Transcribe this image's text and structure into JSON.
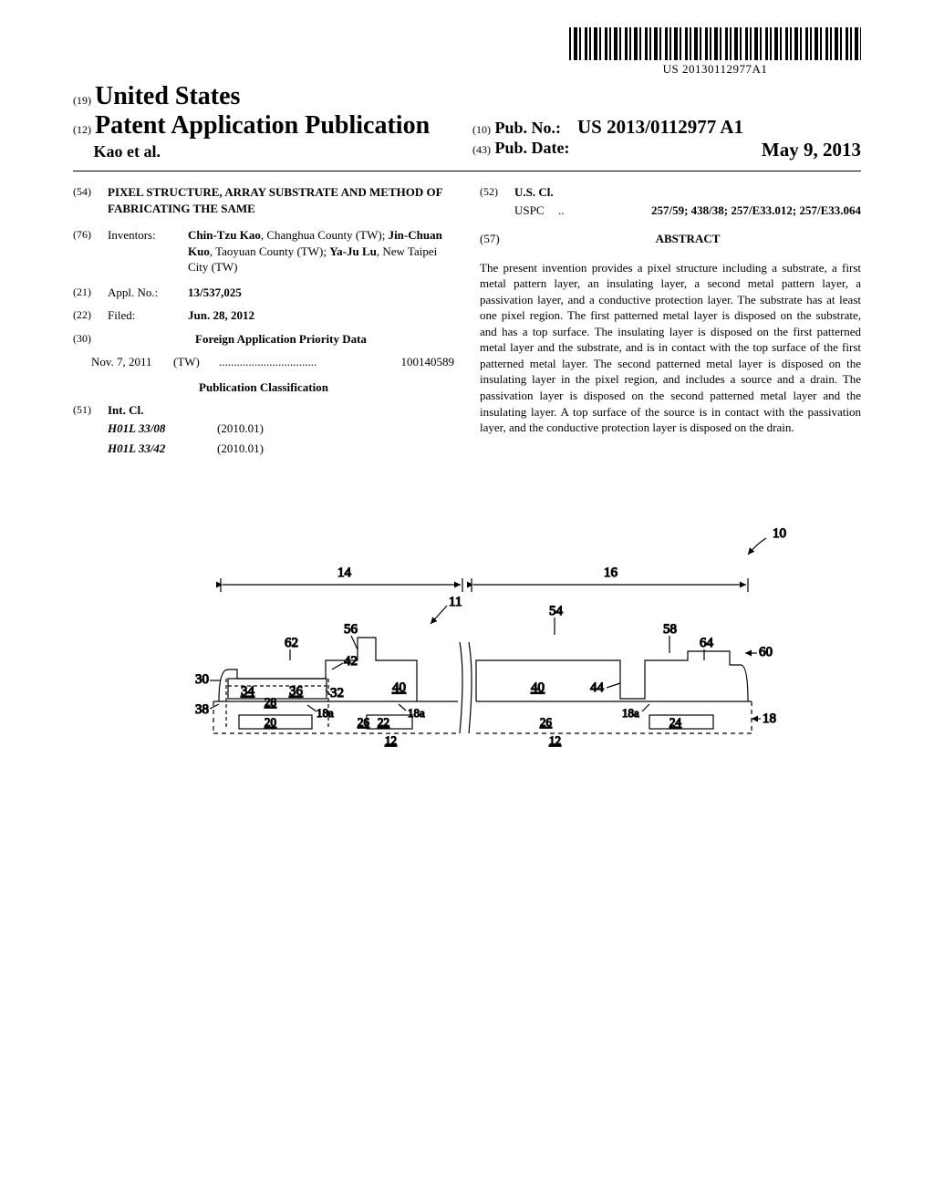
{
  "barcode_text": "US 20130112977A1",
  "header": {
    "country_code": "(19)",
    "country": "United States",
    "pub_type_code": "(12)",
    "pub_type": "Patent Application Publication",
    "authors_line": "Kao et al.",
    "pubno_code": "(10)",
    "pubno_label": "Pub. No.:",
    "pubno_value": "US 2013/0112977 A1",
    "pubdate_code": "(43)",
    "pubdate_label": "Pub. Date:",
    "pubdate_value": "May 9, 2013"
  },
  "left": {
    "title_code": "(54)",
    "title": "PIXEL STRUCTURE, ARRAY SUBSTRATE AND METHOD OF FABRICATING THE SAME",
    "inventors_code": "(76)",
    "inventors_label": "Inventors:",
    "inventors_value_parts": [
      {
        "name": "Chin-Tzu Kao",
        "loc": ", Changhua County (TW); "
      },
      {
        "name": "Jin-Chuan Kuo",
        "loc": ", Taoyuan County (TW); "
      },
      {
        "name": "Ya-Ju Lu",
        "loc": ", New Taipei City (TW)"
      }
    ],
    "applno_code": "(21)",
    "applno_label": "Appl. No.:",
    "applno_value": "13/537,025",
    "filed_code": "(22)",
    "filed_label": "Filed:",
    "filed_value": "Jun. 28, 2012",
    "foreign_code": "(30)",
    "foreign_header": "Foreign Application Priority Data",
    "foreign_date": "Nov. 7, 2011",
    "foreign_ctry": "(TW)",
    "foreign_dots": ".................................",
    "foreign_app": "100140589",
    "pubclass_header": "Publication Classification",
    "intcl_code": "(51)",
    "intcl_label": "Int. Cl.",
    "intcl_rows": [
      {
        "cls": "H01L 33/08",
        "ver": "(2010.01)"
      },
      {
        "cls": "H01L 33/42",
        "ver": "(2010.01)"
      }
    ]
  },
  "right": {
    "uscl_code": "(52)",
    "uscl_label": "U.S. Cl.",
    "uscl_prefix": "USPC",
    "uscl_dots": "..",
    "uscl_value": "257/59; 438/38; 257/E33.012; 257/E33.064",
    "abstract_code": "(57)",
    "abstract_header": "ABSTRACT",
    "abstract_text": "The present invention provides a pixel structure including a substrate, a first metal pattern layer, an insulating layer, a second metal pattern layer, a passivation layer, and a conductive protection layer. The substrate has at least one pixel region. The first patterned metal layer is disposed on the substrate, and has a top surface. The insulating layer is disposed on the first patterned metal layer and the substrate, and is in contact with the top surface of the first patterned metal layer. The second patterned metal layer is disposed on the insulating layer in the pixel region, and includes a source and a drain. The passivation layer is disposed on the second patterned metal layer and the insulating layer. A top surface of the source is in contact with the passivation layer, and the conductive protection layer is disposed on the drain."
  },
  "figure": {
    "labels": {
      "ref10": "10",
      "ref14": "14",
      "ref16": "16",
      "ref11": "11",
      "ref54": "54",
      "ref56": "56",
      "ref58": "58",
      "ref62": "62",
      "ref64": "64",
      "ref60": "60",
      "ref42": "42",
      "ref30": "30",
      "ref34": "34",
      "ref36": "36",
      "ref32": "32",
      "ref40a": "40",
      "ref40b": "40",
      "ref44": "44",
      "ref28": "28",
      "ref38": "38",
      "ref18a1": "18a",
      "ref18a2": "18a",
      "ref18a3": "18a",
      "ref26a": "26",
      "ref26b": "26",
      "ref18": "18",
      "ref20": "20",
      "ref22": "22",
      "ref24": "24",
      "ref12a": "12",
      "ref12b": "12"
    }
  }
}
